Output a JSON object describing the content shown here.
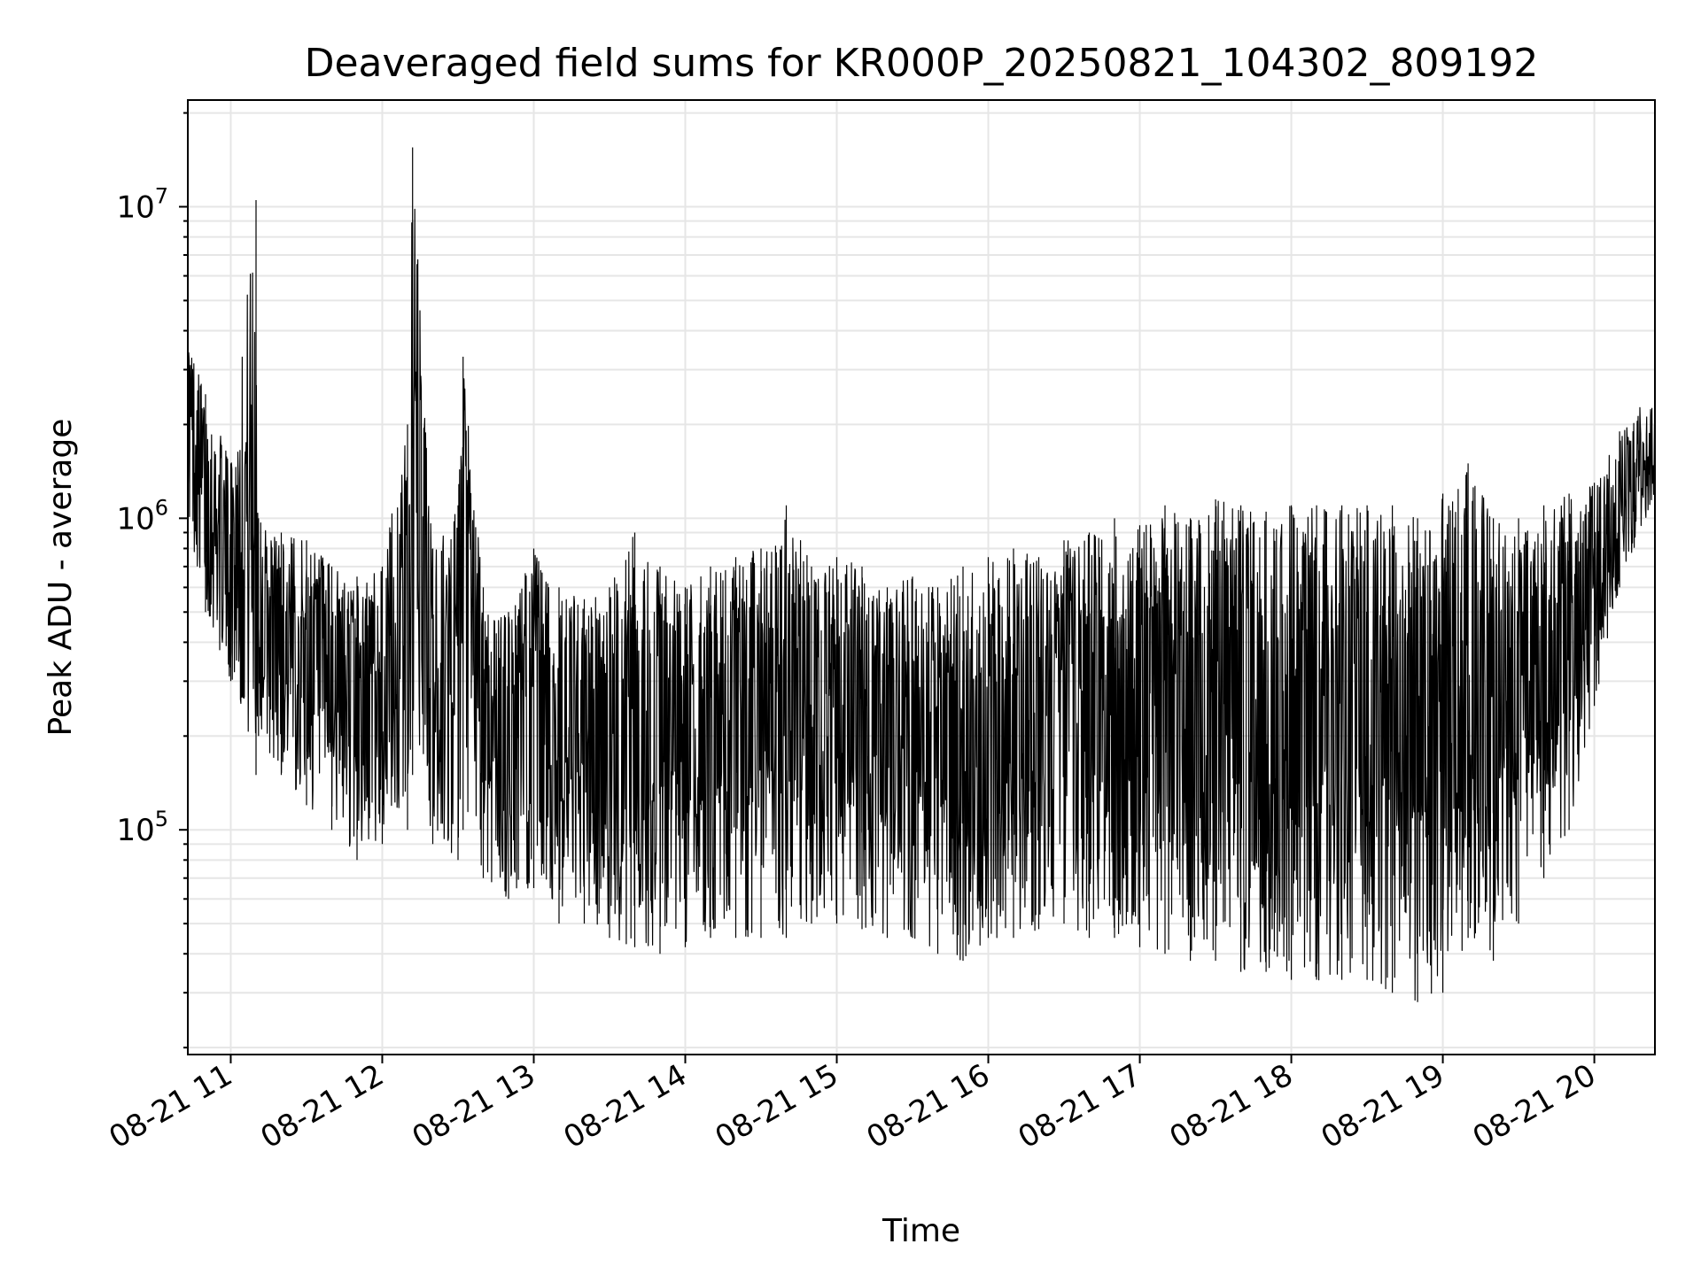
{
  "chart_data": {
    "type": "line",
    "title": "Deaveraged field sums for KR000P_20250821_104302_809192",
    "xlabel": "Time",
    "ylabel": "Peak ADU - average",
    "yscale": "log",
    "ylim": [
      19000,
      22000000
    ],
    "xlim": [
      "08-21 10:43",
      "08-21 20:24"
    ],
    "grid": true,
    "line_color": "#000000",
    "grid_color": "#e6e6e6",
    "xticks": [
      "08-21 11",
      "08-21 12",
      "08-21 13",
      "08-21 14",
      "08-21 15",
      "08-21 16",
      "08-21 17",
      "08-21 18",
      "08-21 19",
      "08-21 20"
    ],
    "yticks": [
      {
        "value": 100000,
        "base": "10",
        "exp": "5"
      },
      {
        "value": 1000000,
        "base": "10",
        "exp": "6"
      },
      {
        "value": 10000000,
        "base": "10",
        "exp": "7"
      }
    ],
    "series": [
      {
        "description": "noisy signal envelope (local upper / lower extremes, sampled every 10 min)",
        "x": [
          "08-21 10:43",
          "08-21 10:50",
          "08-21 11:00",
          "08-21 11:10",
          "08-21 11:11",
          "08-21 11:20",
          "08-21 11:30",
          "08-21 11:40",
          "08-21 11:50",
          "08-21 12:00",
          "08-21 12:10",
          "08-21 12:12",
          "08-21 12:20",
          "08-21 12:30",
          "08-21 12:32",
          "08-21 12:40",
          "08-21 12:50",
          "08-21 13:00",
          "08-21 13:10",
          "08-21 13:20",
          "08-21 13:30",
          "08-21 13:40",
          "08-21 13:50",
          "08-21 14:00",
          "08-21 14:10",
          "08-21 14:20",
          "08-21 14:30",
          "08-21 14:40",
          "08-21 14:50",
          "08-21 15:00",
          "08-21 15:10",
          "08-21 15:20",
          "08-21 15:30",
          "08-21 15:40",
          "08-21 15:50",
          "08-21 16:00",
          "08-21 16:10",
          "08-21 16:20",
          "08-21 16:30",
          "08-21 16:40",
          "08-21 16:50",
          "08-21 17:00",
          "08-21 17:10",
          "08-21 17:20",
          "08-21 17:30",
          "08-21 17:40",
          "08-21 17:50",
          "08-21 18:00",
          "08-21 18:10",
          "08-21 18:20",
          "08-21 18:30",
          "08-21 18:40",
          "08-21 18:50",
          "08-21 19:00",
          "08-21 19:10",
          "08-21 19:20",
          "08-21 19:30",
          "08-21 19:40",
          "08-21 19:50",
          "08-21 20:00",
          "08-21 20:10",
          "08-21 20:24"
        ],
        "upper": [
          4000000,
          2500000,
          1500000,
          10500000,
          1000000,
          900000,
          850000,
          700000,
          650000,
          700000,
          2000000,
          15500000,
          800000,
          1100000,
          3300000,
          600000,
          500000,
          800000,
          600000,
          550000,
          600000,
          900000,
          700000,
          600000,
          700000,
          750000,
          800000,
          1100000,
          700000,
          750000,
          700000,
          600000,
          650000,
          600000,
          700000,
          750000,
          800000,
          750000,
          850000,
          900000,
          1000000,
          950000,
          1100000,
          1000000,
          1150000,
          1100000,
          1050000,
          1100000,
          1100000,
          1100000,
          1100000,
          1100000,
          1000000,
          1200000,
          1500000,
          1000000,
          1000000,
          1100000,
          1200000,
          1300000,
          1900000,
          2700000
        ],
        "lower": [
          1000000,
          500000,
          300000,
          150000,
          200000,
          150000,
          120000,
          100000,
          80000,
          90000,
          100000,
          150000,
          90000,
          80000,
          100000,
          70000,
          60000,
          65000,
          50000,
          50000,
          45000,
          42000,
          40000,
          42000,
          45000,
          45000,
          45000,
          45000,
          50000,
          50000,
          48000,
          45000,
          45000,
          40000,
          38000,
          45000,
          45000,
          48000,
          50000,
          45000,
          45000,
          42000,
          40000,
          38000,
          38000,
          35000,
          35000,
          33000,
          33000,
          33000,
          33000,
          30000,
          28000,
          30000,
          45000,
          38000,
          50000,
          70000,
          100000,
          250000,
          600000,
          1200000
        ]
      }
    ]
  }
}
